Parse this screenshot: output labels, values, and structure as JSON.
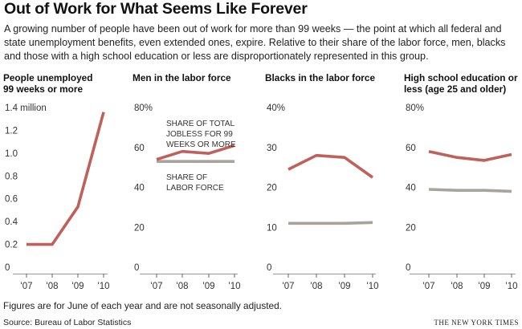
{
  "title": "Out of Work for What Seems Like Forever",
  "intro": "A growing number of people have been out of work for more than 99 weeks — the point at which all federal and state unemployment benefits, even extended ones, expire. Relative to their share of the labor force, men, blacks and those with a high school education or less are disproportionately represented in this group.",
  "footnote": "Figures are for June of each year and are not seasonally adjusted.",
  "source": "Source: Bureau of Labor Statistics",
  "credit": "THE NEW YORK TIMES",
  "colors": {
    "jobless": "#c0605a",
    "labor_force": "#a8a39b",
    "baseline": "#999999"
  },
  "annotations": {
    "jobless": [
      "SHARE OF TOTAL",
      "JOBLESS FOR 99",
      "WEEKS OR MORE"
    ],
    "labor_force": [
      "SHARE OF",
      "LABOR FORCE"
    ]
  },
  "chart_data": [
    {
      "type": "line",
      "title": [
        "People unemployed",
        "99 weeks or more"
      ],
      "categories": [
        "'07",
        "'08",
        "'09",
        "'10"
      ],
      "ylim": [
        0,
        1.4
      ],
      "yticks": [
        0,
        0.2,
        0.4,
        0.6,
        0.8,
        1.0,
        1.2,
        1.4
      ],
      "ytick_labels": [
        "0",
        "0.2",
        "0.4",
        "0.6",
        "0.8",
        "1.0",
        "1.2",
        "1.4 million"
      ],
      "series": [
        {
          "values": [
            0.2,
            0.2,
            0.53,
            1.36
          ]
        }
      ]
    },
    {
      "type": "line",
      "title": [
        "Men in the labor force"
      ],
      "categories": [
        "'07",
        "'08",
        "'09",
        "'10"
      ],
      "ylim": [
        0,
        80
      ],
      "yticks": [
        0,
        20,
        40,
        60,
        80
      ],
      "ytick_labels": [
        "0",
        "20",
        "40",
        "60",
        "80%"
      ],
      "series": [
        {
          "name": "SHARE OF TOTAL JOBLESS FOR 99 WEEKS OR MORE",
          "values": [
            54,
            58,
            57,
            61
          ]
        },
        {
          "name": "SHARE OF LABOR FORCE",
          "values": [
            53,
            53,
            53,
            53
          ]
        }
      ]
    },
    {
      "type": "line",
      "title": [
        "Blacks in the labor force"
      ],
      "categories": [
        "'07",
        "'08",
        "'09",
        "'10"
      ],
      "ylim": [
        0,
        40
      ],
      "yticks": [
        0,
        10,
        20,
        30,
        40
      ],
      "ytick_labels": [
        "0",
        "10",
        "20",
        "30",
        "40%"
      ],
      "series": [
        {
          "name": "SHARE OF TOTAL JOBLESS FOR 99 WEEKS OR MORE",
          "values": [
            24.5,
            28,
            27.5,
            22.5
          ]
        },
        {
          "name": "SHARE OF LABOR FORCE",
          "values": [
            11,
            11,
            11,
            11.2
          ]
        }
      ]
    },
    {
      "type": "line",
      "title": [
        "High school education or",
        "less (age 25 and older)"
      ],
      "categories": [
        "'07",
        "'08",
        "'09",
        "'10"
      ],
      "ylim": [
        0,
        80
      ],
      "yticks": [
        0,
        20,
        40,
        60,
        80
      ],
      "ytick_labels": [
        "0",
        "20",
        "40",
        "60",
        "80%"
      ],
      "series": [
        {
          "name": "SHARE OF TOTAL JOBLESS FOR 99 WEEKS OR MORE",
          "values": [
            58,
            55,
            53.5,
            56.5
          ]
        },
        {
          "name": "SHARE OF LABOR FORCE",
          "values": [
            39,
            38.5,
            38.5,
            38
          ]
        }
      ]
    }
  ]
}
